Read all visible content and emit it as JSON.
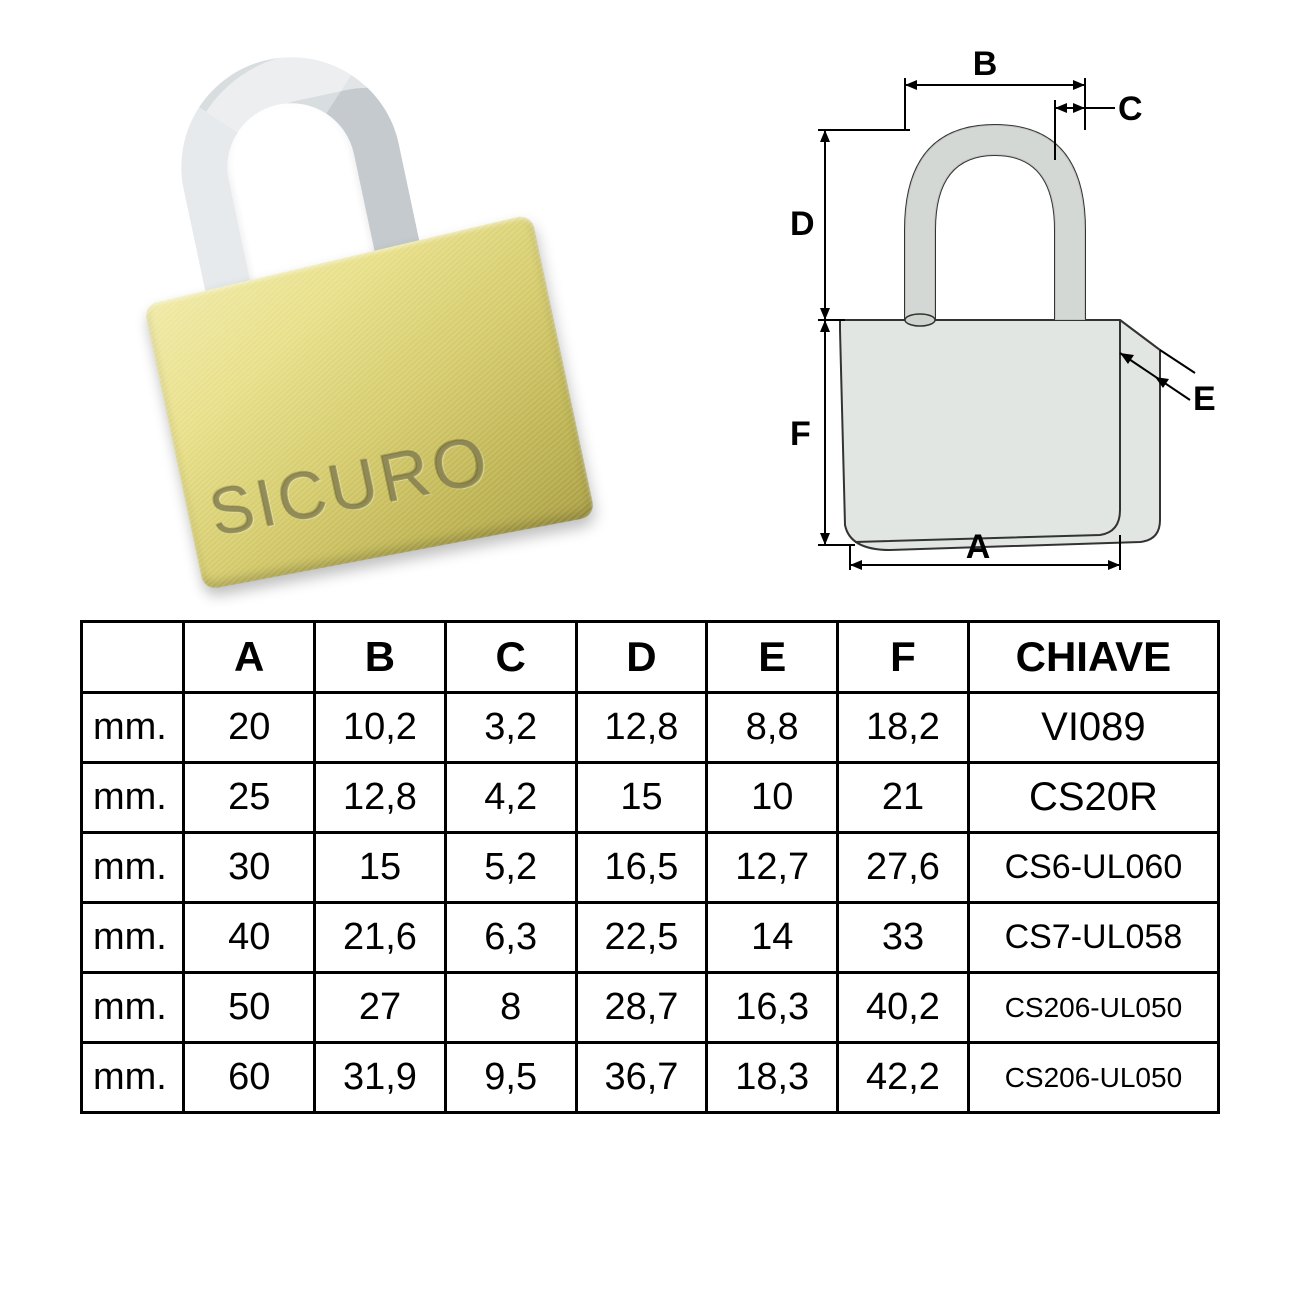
{
  "brand": "SICURO",
  "diagram": {
    "labels": {
      "A": "A",
      "B": "B",
      "C": "C",
      "D": "D",
      "E": "E",
      "F": "F"
    },
    "body_fill": "#e2e6e2",
    "body_stroke": "#333333",
    "shackle_fill": "#cfd4cf",
    "line_color": "#000000"
  },
  "table": {
    "unit_header": "",
    "headers": [
      "A",
      "B",
      "C",
      "D",
      "E",
      "F",
      "CHIAVE"
    ],
    "unit_label": "mm.",
    "rows": [
      {
        "vals": [
          "20",
          "10,2",
          "3,2",
          "12,8",
          "8,8",
          "18,2"
        ],
        "key": "VI089",
        "key_cls": "key-big"
      },
      {
        "vals": [
          "25",
          "12,8",
          "4,2",
          "15",
          "10",
          "21"
        ],
        "key": "CS20R",
        "key_cls": "key-big"
      },
      {
        "vals": [
          "30",
          "15",
          "5,2",
          "16,5",
          "12,7",
          "27,6"
        ],
        "key": "CS6-UL060",
        "key_cls": "key-med"
      },
      {
        "vals": [
          "40",
          "21,6",
          "6,3",
          "22,5",
          "14",
          "33"
        ],
        "key": "CS7-UL058",
        "key_cls": "key-med"
      },
      {
        "vals": [
          "50",
          "27",
          "8",
          "28,7",
          "16,3",
          "40,2"
        ],
        "key": "CS206-UL050",
        "key_cls": "key-small"
      },
      {
        "vals": [
          "60",
          "31,9",
          "9,5",
          "36,7",
          "18,3",
          "42,2"
        ],
        "key": "CS206-UL050",
        "key_cls": "key-small"
      }
    ],
    "border_color": "#000000",
    "header_fontsize": 42,
    "cell_fontsize": 38
  }
}
